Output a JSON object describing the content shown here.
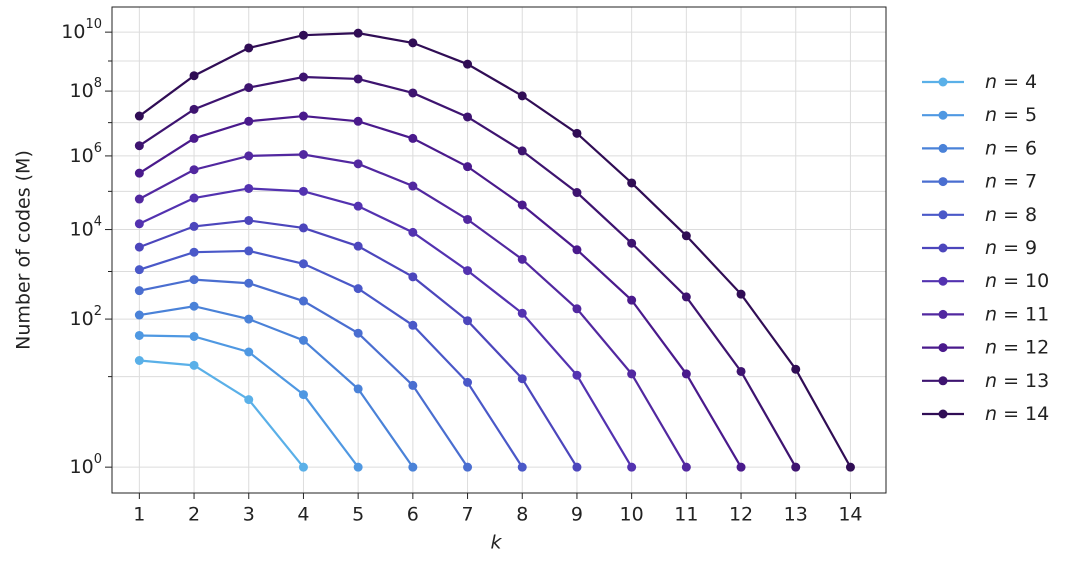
{
  "chart_data": {
    "type": "line",
    "ylabel": "Number of codes (M)",
    "xlabel": "k",
    "x": [
      1,
      2,
      3,
      4,
      5,
      6,
      7,
      8,
      9,
      10,
      11,
      12,
      13,
      14
    ],
    "xlim": [
      0.5,
      14.65
    ],
    "xticks": [
      1,
      2,
      3,
      4,
      5,
      6,
      7,
      8,
      9,
      10,
      11,
      12,
      13,
      14
    ],
    "yscale": "log",
    "ylim": [
      0.8,
      80000000000
    ],
    "yticks": [
      {
        "value": 1,
        "label": "10^0"
      },
      {
        "value": 100,
        "label": "10^2"
      },
      {
        "value": 10000,
        "label": "10^4"
      },
      {
        "value": 1000000,
        "label": "10^6"
      },
      {
        "value": 100000000,
        "label": "10^8"
      },
      {
        "value": 10000000000,
        "label": "10^10"
      }
    ],
    "yminorticks": [
      10,
      1000,
      100000,
      10000000,
      1000000000
    ],
    "grid": true,
    "legend": "right",
    "series": [
      {
        "name": "n = 4",
        "color": "#5ab0e8",
        "values": [
          18,
          15,
          4.7,
          1,
          null,
          null,
          null,
          null,
          null,
          null,
          null,
          null,
          null,
          null
        ]
      },
      {
        "name": "n = 5",
        "color": "#4f98e2",
        "values": [
          49,
          47,
          25,
          5.5,
          1,
          null,
          null,
          null,
          null,
          null,
          null,
          null,
          null,
          null
        ]
      },
      {
        "name": "n = 6",
        "color": "#4a82d8",
        "values": [
          120,
          180,
          100,
          40,
          6.6,
          1,
          null,
          null,
          null,
          null,
          null,
          null,
          null,
          null
        ]
      },
      {
        "name": "n = 7",
        "color": "#4a6ed0",
        "values": [
          380,
          660,
          550,
          230,
          54,
          7.4,
          1,
          null,
          null,
          null,
          null,
          null,
          null,
          null
        ]
      },
      {
        "name": "n = 8",
        "color": "#4a58c8",
        "values": [
          1100,
          2800,
          3000,
          1500,
          420,
          76,
          8.2,
          1,
          null,
          null,
          null,
          null,
          null,
          null
        ]
      },
      {
        "name": "n = 9",
        "color": "#4c46bc",
        "values": [
          3700,
          12000,
          17000,
          11000,
          3900,
          760,
          93,
          9.3,
          1,
          null,
          null,
          null,
          null,
          null
        ]
      },
      {
        "name": "n = 10",
        "color": "#5332b0",
        "values": [
          14000,
          66000,
          120000,
          100000,
          40000,
          8500,
          1050,
          130,
          10.5,
          1,
          null,
          null,
          null,
          null
        ]
      },
      {
        "name": "n = 11",
        "color": "#5228a0",
        "values": [
          62000,
          400000,
          1000000,
          1100000,
          590000,
          140000,
          18000,
          1900,
          160,
          11,
          1,
          null,
          null,
          null
        ]
      },
      {
        "name": "n = 12",
        "color": "#4a1a8c",
        "values": [
          320000,
          3300000,
          11000000,
          16000000,
          11000000,
          3300000,
          490000,
          43000,
          3200,
          240,
          11,
          1,
          null,
          null
        ]
      },
      {
        "name": "n = 13",
        "color": "#3e1470",
        "values": [
          2000000,
          26000000,
          130000000,
          290000000,
          250000000,
          87000000,
          15000000,
          1400000,
          93000,
          4600,
          280,
          12,
          1,
          null
        ]
      },
      {
        "name": "n = 14",
        "color": "#300d55",
        "values": [
          16000000,
          320000000,
          2800000000,
          7800000000,
          9200000000,
          4200000000,
          780000000,
          70000000,
          4700000,
          170000,
          7000,
          320,
          13,
          1
        ]
      }
    ]
  }
}
